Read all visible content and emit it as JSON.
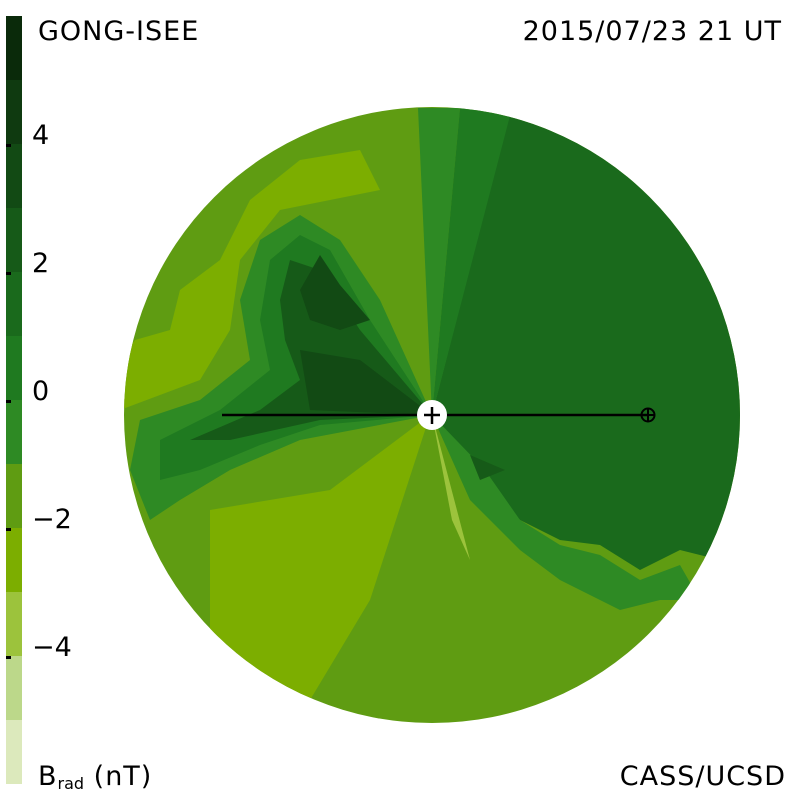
{
  "header": {
    "source": "GONG-ISEE",
    "datetime": "2015/07/23 21 UT"
  },
  "footer": {
    "credit": "CASS/UCSD",
    "quantity_symbol": "B",
    "quantity_subscript": "rad",
    "unit": " (nT)"
  },
  "colorbar": {
    "tick_labels": [
      "4",
      "2",
      "0",
      "−2",
      "−4"
    ],
    "colors": [
      "#0a2a0a",
      "#0f3a10",
      "#124a14",
      "#165a18",
      "#1a6a1c",
      "#1f7a20",
      "#2e8a24",
      "#5f9c12",
      "#7cae00",
      "#9cc33c",
      "#bcd88a",
      "#dce9bc"
    ]
  },
  "symbols": {
    "sun": "sun-center-icon",
    "earth": "earth-icon"
  }
}
